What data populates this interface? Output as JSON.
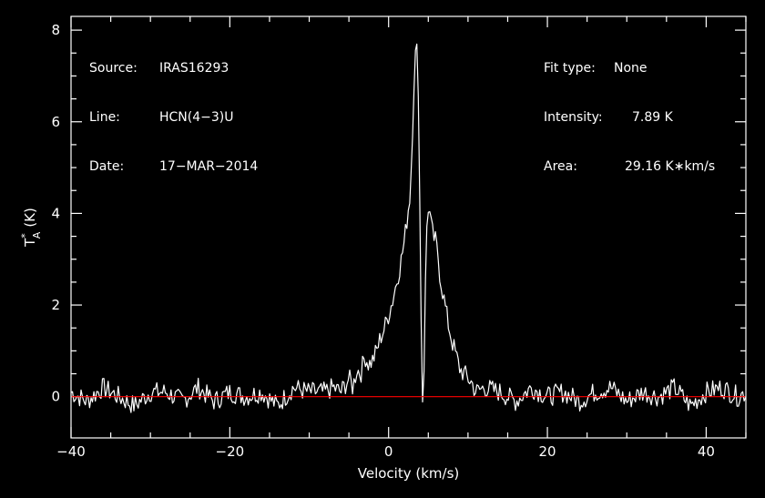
{
  "info_left": [
    {
      "label": "Source:",
      "value": "IRAS16293"
    },
    {
      "label": "Line:",
      "value": "HCN(4−3)U"
    },
    {
      "label": "Date:",
      "value": "17−MAR−2014"
    }
  ],
  "info_right": [
    {
      "label": "Fit type:",
      "value": "None"
    },
    {
      "label": "Intensity:",
      "value": "7.89 K"
    },
    {
      "label": "Area:",
      "value": "29.16 K∗km/s"
    }
  ],
  "colors": {
    "axes": "#ffffff",
    "spectrum": "#ffffff",
    "baseline": "#ff0000",
    "background": "#000000"
  },
  "chart_data": {
    "type": "line",
    "xlabel": "Velocity (km/s)",
    "ylabel_main": "T",
    "ylabel_sup": "*",
    "ylabel_sub": "A",
    "ylabel_unit": "(K)",
    "xlim": [
      -40,
      45
    ],
    "ylim": [
      -0.9,
      8.3
    ],
    "xticks": [
      -40,
      -20,
      0,
      20,
      40
    ],
    "xtick_labels": [
      "−40",
      "−20",
      "0",
      "20",
      "40"
    ],
    "yticks": [
      0,
      2,
      4,
      6,
      8
    ],
    "ytick_labels": [
      "0",
      "2",
      "4",
      "6",
      "8"
    ],
    "baseline_y": 0,
    "series": [
      {
        "x": [
          -40,
          -38,
          -36,
          -34,
          -32,
          -30,
          -28,
          -26,
          -24,
          -22,
          -20,
          -18,
          -16,
          -14,
          -12,
          -10,
          -8,
          -7,
          -6,
          -5,
          -4.5,
          -4,
          -3.5,
          -3,
          -2.5,
          -2,
          -1.5,
          -1,
          -0.5,
          0,
          0.5,
          1,
          1.5,
          2,
          2.4,
          2.7,
          3.0,
          3.3,
          3.5,
          3.7,
          3.9,
          4.1,
          4.3,
          4.5,
          4.7,
          4.9,
          5.1,
          5.3,
          5.6,
          5.9,
          6.2,
          6.5,
          7,
          7.5,
          8,
          8.5,
          9,
          9.5,
          10,
          10.5,
          11,
          12,
          14,
          16,
          18,
          20,
          22,
          24,
          26,
          28,
          30,
          32,
          34,
          36,
          38,
          40,
          42,
          44,
          45
        ],
        "y": [
          0.1,
          -0.1,
          0.2,
          0.0,
          -0.2,
          0.1,
          0.1,
          -0.1,
          0.2,
          -0.1,
          0.1,
          0.0,
          0.1,
          -0.2,
          0.2,
          0.1,
          0.1,
          0.2,
          0.1,
          0.4,
          0.2,
          0.6,
          0.5,
          0.9,
          0.7,
          0.8,
          1.0,
          1.3,
          1.5,
          1.8,
          2.1,
          2.5,
          2.9,
          3.4,
          4.0,
          4.4,
          5.6,
          7.3,
          7.9,
          7.1,
          4.6,
          1.7,
          -0.3,
          0.8,
          3.3,
          4.0,
          4.1,
          3.8,
          3.5,
          3.4,
          3.1,
          2.6,
          2.1,
          1.6,
          1.2,
          0.9,
          0.6,
          0.5,
          0.4,
          0.3,
          0.1,
          0.2,
          0.1,
          -0.1,
          0.2,
          0.0,
          0.1,
          -0.1,
          0.1,
          0.2,
          -0.1,
          0.1,
          0.0,
          0.2,
          -0.2,
          0.1,
          0.2,
          0.0,
          0.1
        ]
      }
    ]
  }
}
